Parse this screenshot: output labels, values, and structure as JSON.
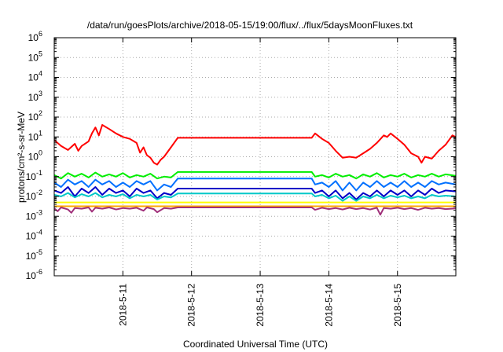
{
  "chart_data": {
    "type": "line",
    "title": "/data/run/goesPlots/archive/2018-05-15/19:00/flux/../flux/5daysMoonFluxes.txt",
    "xlabel": "Coordinated Universal Time (UTC)",
    "ylabel": "protons/cm²-s-sr-MeV",
    "x_unit": "days of May 2018 (UTC)",
    "x_range": [
      10.0,
      15.85
    ],
    "ylim": [
      1e-06,
      1000000.0
    ],
    "y_scale": "log",
    "grid": true,
    "legend": "none",
    "x_ticks": [
      {
        "x": 11,
        "label": "2018-5-11"
      },
      {
        "x": 12,
        "label": "2018-5-12"
      },
      {
        "x": 13,
        "label": "2018-5-13"
      },
      {
        "x": 14,
        "label": "2018-5-14"
      },
      {
        "x": 15,
        "label": "2018-5-15"
      }
    ],
    "y_ticks": [
      {
        "exp": -6,
        "base": "10",
        "sup": "-6"
      },
      {
        "exp": -5,
        "base": "10",
        "sup": "-5"
      },
      {
        "exp": -4,
        "base": "10",
        "sup": "-4"
      },
      {
        "exp": -3,
        "base": "10",
        "sup": "-3"
      },
      {
        "exp": -2,
        "base": "10",
        "sup": "-2"
      },
      {
        "exp": -1,
        "base": "10",
        "sup": "-1"
      },
      {
        "exp": 0,
        "base": "10",
        "sup": "0"
      },
      {
        "exp": 1,
        "base": "10",
        "sup": "1"
      },
      {
        "exp": 2,
        "base": "10",
        "sup": "2"
      },
      {
        "exp": 3,
        "base": "10",
        "sup": "3"
      },
      {
        "exp": 4,
        "base": "10",
        "sup": "4"
      },
      {
        "exp": 5,
        "base": "10",
        "sup": "5"
      },
      {
        "exp": 6,
        "base": "10",
        "sup": "6"
      }
    ],
    "series": [
      {
        "color": "#ff0000",
        "points": [
          [
            10.0,
            7
          ],
          [
            10.1,
            3.5
          ],
          [
            10.2,
            2.2
          ],
          [
            10.3,
            4.5
          ],
          [
            10.35,
            2
          ],
          [
            10.4,
            3.5
          ],
          [
            10.5,
            6
          ],
          [
            10.55,
            15
          ],
          [
            10.6,
            30
          ],
          [
            10.65,
            12
          ],
          [
            10.7,
            40
          ],
          [
            10.8,
            25
          ],
          [
            10.9,
            15
          ],
          [
            11.0,
            10
          ],
          [
            11.1,
            8
          ],
          [
            11.2,
            5
          ],
          [
            11.25,
            1.6
          ],
          [
            11.3,
            3
          ],
          [
            11.35,
            1.2
          ],
          [
            11.4,
            0.9
          ],
          [
            11.45,
            0.5
          ],
          [
            11.5,
            0.4
          ],
          [
            11.55,
            0.7
          ],
          [
            11.6,
            1
          ],
          [
            11.7,
            3
          ],
          [
            11.8,
            9
          ],
          [
            13.75,
            9
          ],
          [
            13.8,
            15
          ],
          [
            13.9,
            8
          ],
          [
            14.0,
            5
          ],
          [
            14.1,
            2
          ],
          [
            14.2,
            0.9
          ],
          [
            14.3,
            1
          ],
          [
            14.4,
            0.9
          ],
          [
            14.5,
            1.5
          ],
          [
            14.6,
            2.5
          ],
          [
            14.7,
            5
          ],
          [
            14.8,
            12
          ],
          [
            14.85,
            10
          ],
          [
            14.9,
            15
          ],
          [
            15.0,
            8
          ],
          [
            15.1,
            4
          ],
          [
            15.2,
            1.5
          ],
          [
            15.3,
            1
          ],
          [
            15.35,
            0.5
          ],
          [
            15.4,
            1
          ],
          [
            15.5,
            0.8
          ],
          [
            15.6,
            2
          ],
          [
            15.7,
            4
          ],
          [
            15.8,
            12
          ],
          [
            15.85,
            10
          ]
        ]
      },
      {
        "color": "#00ee00",
        "points": [
          [
            10.0,
            0.12
          ],
          [
            10.1,
            0.08
          ],
          [
            10.2,
            0.15
          ],
          [
            10.3,
            0.1
          ],
          [
            10.4,
            0.14
          ],
          [
            10.5,
            0.09
          ],
          [
            10.6,
            0.16
          ],
          [
            10.7,
            0.1
          ],
          [
            10.8,
            0.13
          ],
          [
            10.9,
            0.1
          ],
          [
            11.0,
            0.15
          ],
          [
            11.1,
            0.09
          ],
          [
            11.2,
            0.12
          ],
          [
            11.3,
            0.1
          ],
          [
            11.4,
            0.14
          ],
          [
            11.5,
            0.08
          ],
          [
            11.6,
            0.1
          ],
          [
            11.7,
            0.09
          ],
          [
            11.8,
            0.17
          ],
          [
            13.75,
            0.17
          ],
          [
            13.8,
            0.1
          ],
          [
            13.9,
            0.12
          ],
          [
            14.0,
            0.09
          ],
          [
            14.1,
            0.14
          ],
          [
            14.2,
            0.1
          ],
          [
            14.3,
            0.12
          ],
          [
            14.4,
            0.08
          ],
          [
            14.5,
            0.13
          ],
          [
            14.6,
            0.1
          ],
          [
            14.7,
            0.15
          ],
          [
            14.8,
            0.09
          ],
          [
            14.9,
            0.12
          ],
          [
            15.0,
            0.1
          ],
          [
            15.1,
            0.14
          ],
          [
            15.2,
            0.09
          ],
          [
            15.3,
            0.12
          ],
          [
            15.4,
            0.1
          ],
          [
            15.5,
            0.14
          ],
          [
            15.6,
            0.1
          ],
          [
            15.7,
            0.13
          ],
          [
            15.85,
            0.11
          ]
        ]
      },
      {
        "color": "#0070ff",
        "points": [
          [
            10.0,
            0.05
          ],
          [
            10.1,
            0.03
          ],
          [
            10.2,
            0.07
          ],
          [
            10.3,
            0.04
          ],
          [
            10.4,
            0.06
          ],
          [
            10.5,
            0.03
          ],
          [
            10.6,
            0.07
          ],
          [
            10.7,
            0.04
          ],
          [
            10.8,
            0.06
          ],
          [
            10.9,
            0.03
          ],
          [
            11.0,
            0.05
          ],
          [
            11.1,
            0.03
          ],
          [
            11.2,
            0.06
          ],
          [
            11.3,
            0.04
          ],
          [
            11.4,
            0.06
          ],
          [
            11.5,
            0.02
          ],
          [
            11.6,
            0.04
          ],
          [
            11.7,
            0.03
          ],
          [
            11.8,
            0.08
          ],
          [
            13.75,
            0.08
          ],
          [
            13.8,
            0.04
          ],
          [
            13.9,
            0.05
          ],
          [
            14.0,
            0.03
          ],
          [
            14.1,
            0.06
          ],
          [
            14.2,
            0.02
          ],
          [
            14.3,
            0.05
          ],
          [
            14.4,
            0.02
          ],
          [
            14.5,
            0.05
          ],
          [
            14.6,
            0.03
          ],
          [
            14.7,
            0.06
          ],
          [
            14.8,
            0.03
          ],
          [
            14.9,
            0.05
          ],
          [
            15.0,
            0.03
          ],
          [
            15.1,
            0.06
          ],
          [
            15.2,
            0.03
          ],
          [
            15.3,
            0.05
          ],
          [
            15.4,
            0.03
          ],
          [
            15.5,
            0.06
          ],
          [
            15.6,
            0.04
          ],
          [
            15.7,
            0.05
          ],
          [
            15.85,
            0.04
          ]
        ]
      },
      {
        "color": "#0000c8",
        "points": [
          [
            10.0,
            0.02
          ],
          [
            10.1,
            0.015
          ],
          [
            10.2,
            0.03
          ],
          [
            10.3,
            0.01
          ],
          [
            10.4,
            0.025
          ],
          [
            10.5,
            0.015
          ],
          [
            10.6,
            0.03
          ],
          [
            10.7,
            0.012
          ],
          [
            10.8,
            0.025
          ],
          [
            10.9,
            0.015
          ],
          [
            11.0,
            0.02
          ],
          [
            11.1,
            0.01
          ],
          [
            11.2,
            0.025
          ],
          [
            11.3,
            0.015
          ],
          [
            11.4,
            0.02
          ],
          [
            11.5,
            0.008
          ],
          [
            11.6,
            0.015
          ],
          [
            11.7,
            0.012
          ],
          [
            11.8,
            0.025
          ],
          [
            13.75,
            0.025
          ],
          [
            13.8,
            0.015
          ],
          [
            13.9,
            0.02
          ],
          [
            14.0,
            0.01
          ],
          [
            14.1,
            0.02
          ],
          [
            14.2,
            0.008
          ],
          [
            14.3,
            0.015
          ],
          [
            14.4,
            0.007
          ],
          [
            14.5,
            0.015
          ],
          [
            14.6,
            0.01
          ],
          [
            14.7,
            0.02
          ],
          [
            14.8,
            0.01
          ],
          [
            14.9,
            0.02
          ],
          [
            15.0,
            0.012
          ],
          [
            15.1,
            0.02
          ],
          [
            15.2,
            0.01
          ],
          [
            15.3,
            0.02
          ],
          [
            15.4,
            0.012
          ],
          [
            15.5,
            0.025
          ],
          [
            15.6,
            0.015
          ],
          [
            15.7,
            0.02
          ],
          [
            15.85,
            0.018
          ]
        ]
      },
      {
        "color": "#00c8c8",
        "points": [
          [
            10.0,
            0.012
          ],
          [
            10.1,
            0.01
          ],
          [
            10.2,
            0.015
          ],
          [
            10.3,
            0.009
          ],
          [
            10.4,
            0.013
          ],
          [
            10.5,
            0.01
          ],
          [
            10.6,
            0.015
          ],
          [
            10.7,
            0.009
          ],
          [
            10.8,
            0.012
          ],
          [
            10.9,
            0.01
          ],
          [
            11.0,
            0.013
          ],
          [
            11.1,
            0.008
          ],
          [
            11.2,
            0.012
          ],
          [
            11.3,
            0.01
          ],
          [
            11.4,
            0.012
          ],
          [
            11.5,
            0.007
          ],
          [
            11.6,
            0.01
          ],
          [
            11.7,
            0.009
          ],
          [
            11.8,
            0.014
          ],
          [
            13.75,
            0.014
          ],
          [
            13.8,
            0.01
          ],
          [
            13.9,
            0.012
          ],
          [
            14.0,
            0.008
          ],
          [
            14.1,
            0.011
          ],
          [
            14.2,
            0.006
          ],
          [
            14.3,
            0.01
          ],
          [
            14.4,
            0.006
          ],
          [
            14.5,
            0.01
          ],
          [
            14.6,
            0.008
          ],
          [
            14.7,
            0.012
          ],
          [
            14.8,
            0.008
          ],
          [
            14.9,
            0.011
          ],
          [
            15.0,
            0.009
          ],
          [
            15.1,
            0.011
          ],
          [
            15.2,
            0.008
          ],
          [
            15.3,
            0.01
          ],
          [
            15.4,
            0.008
          ],
          [
            15.5,
            0.012
          ],
          [
            15.6,
            0.01
          ],
          [
            15.7,
            0.011
          ],
          [
            15.85,
            0.01
          ]
        ]
      },
      {
        "color": "#ffff00",
        "points": [
          [
            10.0,
            0.005
          ],
          [
            11.8,
            0.005
          ],
          [
            13.75,
            0.005
          ],
          [
            15.85,
            0.005
          ]
        ]
      },
      {
        "color": "#ffa500",
        "points": [
          [
            10.0,
            0.0032
          ],
          [
            11.8,
            0.0032
          ],
          [
            13.75,
            0.0032
          ],
          [
            15.85,
            0.0032
          ]
        ]
      },
      {
        "color": "#a0307a",
        "points": [
          [
            10.0,
            0.0025
          ],
          [
            10.05,
            0.0018
          ],
          [
            10.1,
            0.0028
          ],
          [
            10.2,
            0.0022
          ],
          [
            10.25,
            0.0015
          ],
          [
            10.3,
            0.0026
          ],
          [
            10.4,
            0.0024
          ],
          [
            10.5,
            0.0028
          ],
          [
            10.55,
            0.0017
          ],
          [
            10.6,
            0.0027
          ],
          [
            10.7,
            0.0024
          ],
          [
            10.8,
            0.0028
          ],
          [
            10.9,
            0.0022
          ],
          [
            11.0,
            0.0026
          ],
          [
            11.1,
            0.0024
          ],
          [
            11.2,
            0.0027
          ],
          [
            11.3,
            0.0019
          ],
          [
            11.35,
            0.0028
          ],
          [
            11.45,
            0.0023
          ],
          [
            11.5,
            0.0016
          ],
          [
            11.6,
            0.0026
          ],
          [
            11.7,
            0.0024
          ],
          [
            11.8,
            0.0028
          ],
          [
            13.75,
            0.0028
          ],
          [
            13.8,
            0.0021
          ],
          [
            13.9,
            0.0027
          ],
          [
            14.0,
            0.0023
          ],
          [
            14.1,
            0.0026
          ],
          [
            14.2,
            0.0022
          ],
          [
            14.3,
            0.0027
          ],
          [
            14.4,
            0.0023
          ],
          [
            14.5,
            0.0026
          ],
          [
            14.6,
            0.0022
          ],
          [
            14.7,
            0.0027
          ],
          [
            14.75,
            0.0012
          ],
          [
            14.8,
            0.0026
          ],
          [
            14.9,
            0.0024
          ],
          [
            15.0,
            0.0027
          ],
          [
            15.1,
            0.0023
          ],
          [
            15.2,
            0.0026
          ],
          [
            15.3,
            0.0021
          ],
          [
            15.4,
            0.0027
          ],
          [
            15.5,
            0.0024
          ],
          [
            15.6,
            0.0026
          ],
          [
            15.7,
            0.0023
          ],
          [
            15.85,
            0.0025
          ]
        ]
      }
    ]
  }
}
